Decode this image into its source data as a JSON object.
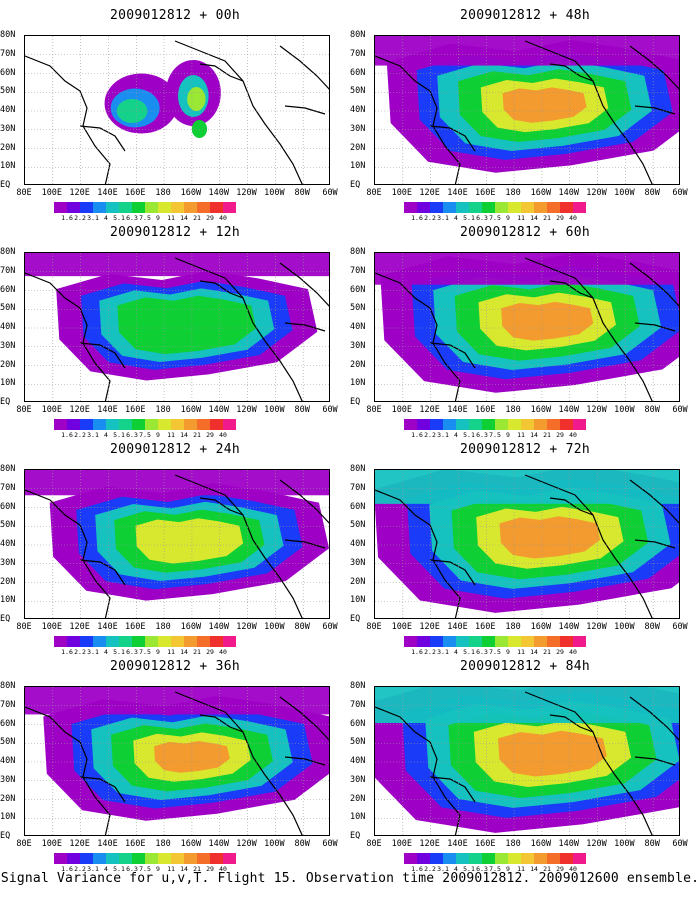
{
  "figure": {
    "caption": "Signal Variance for u,v,T. Flight 15. Observation time 2009012812. 2009012600 ensemble."
  },
  "lat_labels": [
    "80N",
    "70N",
    "60N",
    "50N",
    "40N",
    "30N",
    "20N",
    "10N",
    "EQ"
  ],
  "lon_labels": [
    "80E",
    "100E",
    "120E",
    "140E",
    "160E",
    "180",
    "160W",
    "140W",
    "120W",
    "100W",
    "80W",
    "60W"
  ],
  "colorbar": {
    "colors": [
      "#9f00c6",
      "#7000e0",
      "#1a3bf7",
      "#1a8ef0",
      "#15c2c0",
      "#15d28a",
      "#0ecf33",
      "#9ae833",
      "#d8e82e",
      "#f2c733",
      "#f39b2e",
      "#f46e2a",
      "#f0302c",
      "#f01a8c"
    ],
    "labels": [
      "1.6",
      "2.2",
      "3.1",
      "4",
      "5.1",
      "6.3",
      "7.5",
      "9",
      "11",
      "14",
      "21",
      "29",
      "40"
    ]
  },
  "panels": [
    {
      "title": "2009012812 + 00h",
      "lead_hours": 0
    },
    {
      "title": "2009012812 + 48h",
      "lead_hours": 48
    },
    {
      "title": "2009012812 + 12h",
      "lead_hours": 12
    },
    {
      "title": "2009012812 + 60h",
      "lead_hours": 60
    },
    {
      "title": "2009012812 + 24h",
      "lead_hours": 24
    },
    {
      "title": "2009012812 + 72h",
      "lead_hours": 72
    },
    {
      "title": "2009012812 + 36h",
      "lead_hours": 36
    },
    {
      "title": "2009012812 + 84h",
      "lead_hours": 84
    }
  ]
}
